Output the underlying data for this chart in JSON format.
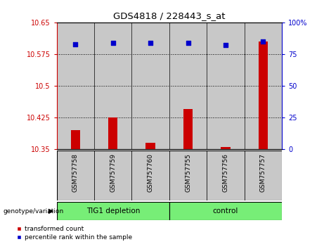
{
  "title": "GDS4818 / 228443_s_at",
  "samples": [
    "GSM757758",
    "GSM757759",
    "GSM757760",
    "GSM757755",
    "GSM757756",
    "GSM757757"
  ],
  "red_values": [
    10.395,
    10.425,
    10.365,
    10.445,
    10.355,
    10.605
  ],
  "blue_values": [
    83,
    84,
    84,
    84,
    82,
    85
  ],
  "baseline": 10.35,
  "ylim_left": [
    10.35,
    10.65
  ],
  "ylim_right": [
    0,
    100
  ],
  "yticks_left": [
    10.35,
    10.425,
    10.5,
    10.575,
    10.65
  ],
  "ytick_labels_left": [
    "10.35",
    "10.425",
    "10.5",
    "10.575",
    "10.65"
  ],
  "yticks_right": [
    0,
    25,
    50,
    75,
    100
  ],
  "ytick_labels_right": [
    "0",
    "25",
    "50",
    "75",
    "100%"
  ],
  "grid_values": [
    10.425,
    10.5,
    10.575
  ],
  "group1_label": "TIG1 depletion",
  "group2_label": "control",
  "group1_indices": [
    0,
    1,
    2
  ],
  "group2_indices": [
    3,
    4,
    5
  ],
  "red_color": "#cc0000",
  "blue_color": "#0000cc",
  "bar_bg_color": "#c8c8c8",
  "group_color": "#77ee77",
  "left_axis_color": "#cc0000",
  "right_axis_color": "#0000cc",
  "legend_red_label": "transformed count",
  "legend_blue_label": "percentile rank within the sample",
  "genotype_label": "genotype/variation",
  "bar_width": 0.25
}
